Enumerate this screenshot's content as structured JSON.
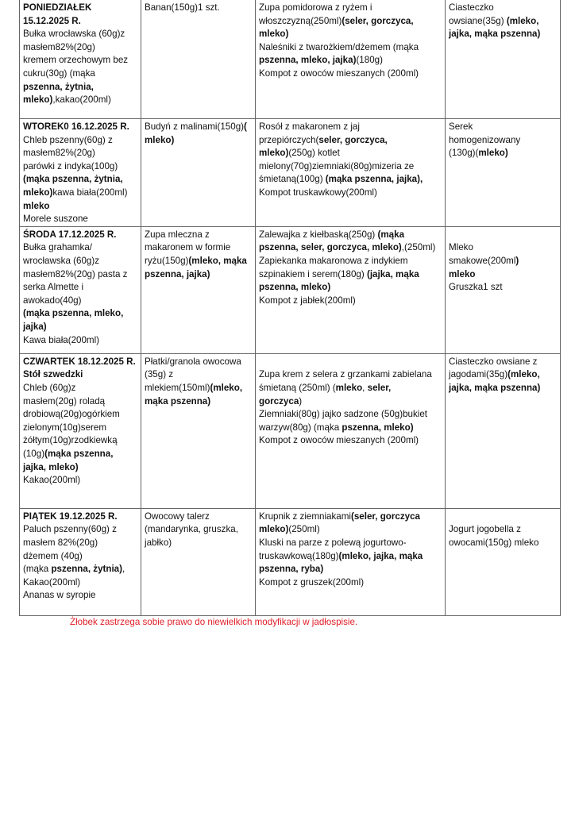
{
  "rows": [
    {
      "heights": 150,
      "cells": [
        [
          [
            {
              "t": "PONIEDZIAŁEK",
              "b": true
            }
          ],
          [
            {
              "t": "15.12.2025 R.",
              "b": true
            }
          ],
          [
            {
              "t": "Bułka wrocławska (60g)z"
            }
          ],
          [
            {
              "t": "masłem82%(20g)"
            }
          ],
          [
            {
              "t": "kremem orzechowym bez"
            }
          ],
          [
            {
              "t": "cukru(30g) (mąka"
            }
          ],
          [
            {
              "t": "pszenna, żytnia,",
              "b": true
            }
          ],
          [
            {
              "t": "mleko)",
              "b": true
            },
            {
              "t": ",kakao(200ml)"
            }
          ]
        ],
        [
          [
            {
              "t": "Banan(150g)1 szt."
            }
          ]
        ],
        [
          [
            {
              "t": "Zupa pomidorowa z ryżem i"
            }
          ],
          [
            {
              "t": "włoszczyzną(250ml)"
            },
            {
              "t": "(seler, gorczyca,",
              "b": true
            }
          ],
          [
            {
              "t": "mleko)",
              "b": true
            }
          ],
          [
            {
              "t": "Naleśniki z twarożkiem/dżemem (mąka"
            }
          ],
          [
            {
              "t": "pszenna, mleko, jajka)",
              "b": true
            },
            {
              "t": "(180g)"
            }
          ],
          [
            {
              "t": "Kompot z owoców mieszanych (200ml)"
            }
          ]
        ],
        [
          [
            {
              "t": "Ciasteczko"
            }
          ],
          [
            {
              "t": "owsiane(35g) "
            },
            {
              "t": "(mleko,",
              "b": true
            }
          ],
          [
            {
              "t": "jajka, mąka pszenna)",
              "b": true
            }
          ]
        ]
      ]
    },
    {
      "heights": 135,
      "cells": [
        [
          [
            {
              "t": "WTOREK0 16.12.2025 R.",
              "b": true
            }
          ],
          [
            {
              "t": "Chleb pszenny(60g) z"
            }
          ],
          [
            {
              "t": "masłem82%(20g)"
            }
          ],
          [
            {
              "t": "parówki z indyka(100g)"
            }
          ],
          [
            {
              "t": "(mąka pszenna, żytnia,",
              "b": true
            }
          ],
          [
            {
              "t": "mleko)",
              "b": true
            },
            {
              "t": "kawa biała(200ml)"
            }
          ],
          [
            {
              "t": "mleko",
              "b": true
            }
          ],
          [
            {
              "t": "Morele suszone"
            }
          ]
        ],
        [
          [
            {
              "t": "Budyń z malinami(150g)"
            },
            {
              "t": "(",
              "b": true
            }
          ],
          [
            {
              "t": "mleko)",
              "b": true
            }
          ]
        ],
        [
          [
            {
              "t": "Rosół z makaronem z jaj"
            }
          ],
          [
            {
              "t": "przepiórczych("
            },
            {
              "t": "seler, gorczyca,",
              "b": true
            }
          ],
          [
            {
              "t": "mleko)",
              "b": true
            },
            {
              "t": "(250g) kotlet"
            }
          ],
          [
            {
              "t": "mielony(70g)ziemniaki(80g)mizeria ze"
            }
          ],
          [
            {
              "t": "śmietaną(100g) "
            },
            {
              "t": "(mąka  pszenna, jajka),",
              "b": true
            }
          ],
          [
            {
              "t": "Kompot truskawkowy(200ml)"
            }
          ]
        ],
        [
          [
            {
              "t": "Serek"
            }
          ],
          [
            {
              "t": "homogenizowany"
            }
          ],
          [
            {
              "t": "(130g)("
            },
            {
              "t": "mleko)",
              "b": true
            }
          ]
        ]
      ]
    },
    {
      "heights": 160,
      "cells": [
        [
          [
            {
              "t": "ŚRODA 17.12.2025 R.",
              "b": true
            }
          ],
          [
            {
              "t": "Bułka grahamka/"
            }
          ],
          [
            {
              "t": "wrocławska (60g)z"
            }
          ],
          [
            {
              "t": "masłem82%(20g) pasta z"
            }
          ],
          [
            {
              "t": "serka Almette i"
            }
          ],
          [
            {
              "t": "awokado(40g)"
            }
          ],
          [
            {
              "t": "(mąka pszenna, mleko,",
              "b": true
            }
          ],
          [
            {
              "t": "jajka)",
              "b": true
            }
          ],
          [
            {
              "t": "Kawa biała(200ml)"
            }
          ]
        ],
        [
          [
            {
              "t": "Zupa mleczna z"
            }
          ],
          [
            {
              "t": "makaronem w formie"
            }
          ],
          [
            {
              "t": "ryżu(150g)"
            },
            {
              "t": "(mleko, mąka",
              "b": true
            }
          ],
          [
            {
              "t": "pszenna, jajka)",
              "b": true
            }
          ]
        ],
        [
          [
            {
              "t": "Zalewajka z kiełbaską(250g) "
            },
            {
              "t": "(mąka",
              "b": true
            }
          ],
          [
            {
              "t": "pszenna, seler, gorczyca, mleko)",
              "b": true
            },
            {
              "t": ",(250ml)"
            }
          ],
          [
            {
              "t": "Zapiekanka makaronowa z indykiem"
            }
          ],
          [
            {
              "t": "szpinakiem i serem(180g) "
            },
            {
              "t": "(jajka, mąka",
              "b": true
            }
          ],
          [
            {
              "t": "pszenna, mleko)",
              "b": true
            }
          ],
          [
            {
              "t": "Kompot z jabłek(200ml)"
            }
          ]
        ],
        [
          [],
          [
            {
              "t": "Mleko"
            }
          ],
          [
            {
              "t": "smakowe(200ml"
            },
            {
              "t": ")",
              "b": true
            }
          ],
          [
            {
              "t": "mleko",
              "b": true
            }
          ],
          [
            {
              "t": "Gruszka1 szt"
            }
          ]
        ]
      ]
    },
    {
      "heights": 195,
      "cells": [
        [
          [
            {
              "t": "CZWARTEK 18.12.2025 R.",
              "b": true
            }
          ],
          [
            {
              "t": "Stół szwedzki",
              "b": true
            }
          ],
          [
            {
              "t": "Chleb  (60g)z"
            }
          ],
          [
            {
              "t": "masłem(20g) roladą"
            }
          ],
          [
            {
              "t": "drobiową(20g)ogórkiem"
            }
          ],
          [
            {
              "t": "zielonym(10g)serem"
            }
          ],
          [
            {
              "t": "żółtym(10g)rzodkiewką"
            }
          ],
          [
            {
              "t": "(10g)"
            },
            {
              "t": "(mąka pszenna,",
              "b": true
            }
          ],
          [
            {
              "t": "jajka, mleko)",
              "b": true
            }
          ],
          [
            {
              "t": "Kakao(200ml)"
            }
          ]
        ],
        [
          [
            {
              "t": "Płatki/granola owocowa"
            }
          ],
          [
            {
              "t": "(35g) z"
            }
          ],
          [
            {
              "t": "mlekiem(150ml)"
            },
            {
              "t": "(mleko,",
              "b": true
            }
          ],
          [
            {
              "t": "mąka pszenna)",
              "b": true
            }
          ]
        ],
        [
          [],
          [
            {
              "t": "Zupa krem z selera z grzankami zabielana"
            }
          ],
          [
            {
              "t": "śmietaną (250ml)  ("
            },
            {
              "t": "mleko",
              "b": true
            },
            {
              "t": ", "
            },
            {
              "t": "seler,",
              "b": true
            }
          ],
          [
            {
              "t": "gorczyca",
              "b": true
            },
            {
              "t": ")"
            }
          ],
          [
            {
              "t": "Ziemniaki(80g) jajko sadzone (50g)bukiet"
            }
          ],
          [
            {
              "t": "warzyw(80g) (mąka "
            },
            {
              "t": "pszenna, mleko)",
              "b": true
            }
          ],
          [
            {
              "t": "Kompot z owoców mieszanych (200ml)"
            }
          ]
        ],
        [
          [
            {
              "t": "Ciasteczko owsiane z"
            }
          ],
          [
            {
              "t": "jagodami(35g)"
            },
            {
              "t": "(mleko,",
              "b": true
            }
          ],
          [
            {
              "t": "jajka, mąka pszenna)",
              "b": true
            }
          ]
        ]
      ]
    },
    {
      "heights": 135,
      "cells": [
        [
          [
            {
              "t": "PIĄTEK 19.12.2025 R.",
              "b": true
            }
          ],
          [
            {
              "t": "Paluch pszenny(60g) z"
            }
          ],
          [
            {
              "t": "masłem 82%(20g)"
            }
          ],
          [
            {
              "t": "dżemem (40g)"
            }
          ],
          [
            {
              "t": "(mąka "
            },
            {
              "t": "pszenna, żytnia)",
              "b": true
            },
            {
              "t": ","
            }
          ],
          [
            {
              "t": "Kakao(200ml)"
            }
          ],
          [
            {
              "t": "Ananas w syropie"
            }
          ]
        ],
        [
          [
            {
              "t": "Owocowy talerz"
            }
          ],
          [
            {
              "t": "(mandarynka, gruszka,"
            }
          ],
          [
            {
              "t": "jabłko)"
            }
          ]
        ],
        [
          [
            {
              "t": "Krupnik z ziemniakami"
            },
            {
              "t": "(seler, gorczyca",
              "b": true
            }
          ],
          [
            {
              "t": "mleko)",
              "b": true
            },
            {
              "t": "(250ml)"
            }
          ],
          [
            {
              "t": "Kluski na parze z polewą jogurtowo-"
            }
          ],
          [
            {
              "t": "truskawkową(180g)"
            },
            {
              "t": "(mleko, jajka, mąka",
              "b": true
            }
          ],
          [
            {
              "t": "pszenna, ryba)",
              "b": true
            }
          ],
          [
            {
              "t": "Kompot z gruszek(200ml)"
            }
          ]
        ],
        [
          [],
          [
            {
              "t": "Jogurt jogobella z"
            }
          ],
          [
            {
              "t": "owocami(150g) mleko"
            }
          ]
        ]
      ]
    }
  ],
  "footer": "Żłobek zastrzega sobie prawo do niewielkich modyfikacji w jadłospisie.",
  "colors": {
    "footer": "#e0202a",
    "border": "#666666"
  }
}
